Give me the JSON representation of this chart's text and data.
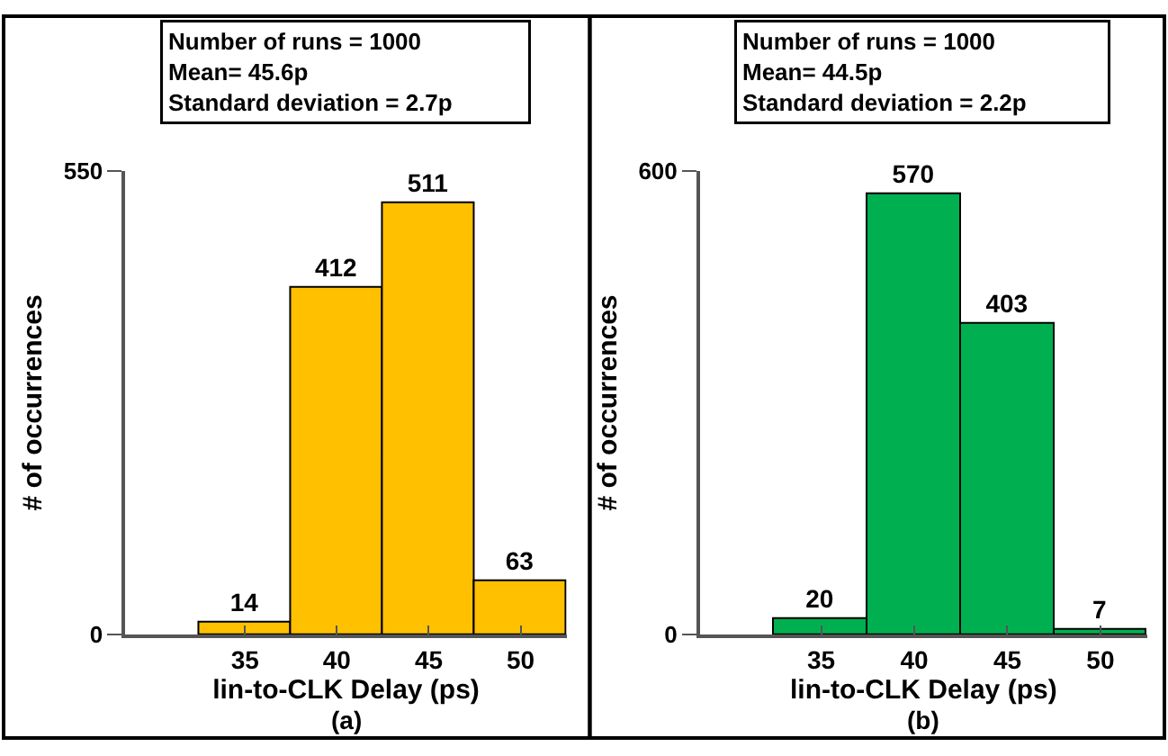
{
  "chart_data": [
    {
      "type": "histogram",
      "bins": [
        32.5,
        37.5,
        42.5,
        47.5,
        52.5
      ],
      "values": [
        14,
        412,
        511,
        63
      ],
      "color": "#ffc000",
      "data_labels": true,
      "xlabel": "lin-to-CLK Delay (ps)",
      "ylabel": "# of occurrences",
      "xlim": [
        28.5,
        52.5
      ],
      "xticks": [
        35,
        40,
        45,
        50
      ],
      "ylim": [
        0,
        550
      ],
      "yticks": [
        0,
        550
      ],
      "annotations": [
        "Number of runs = 1000\nMean= 45.6p\nStandard deviation = 2.7p",
        "(a)"
      ]
    },
    {
      "type": "histogram",
      "bins": [
        32.5,
        37.5,
        42.5,
        47.5,
        52.5
      ],
      "values": [
        20,
        570,
        403,
        7
      ],
      "color": "#00b050",
      "data_labels": true,
      "xlabel": "lin-to-CLK Delay (ps)",
      "ylabel": "# of occurrences",
      "xlim": [
        28.5,
        52.5
      ],
      "xticks": [
        35,
        40,
        45,
        50
      ],
      "ylim": [
        0,
        600
      ],
      "yticks": [
        0,
        600
      ],
      "annotations": [
        "Number of runs = 1000\nMean= 44.5p\nStandard deviation = 2.2p",
        "(b)"
      ]
    }
  ]
}
